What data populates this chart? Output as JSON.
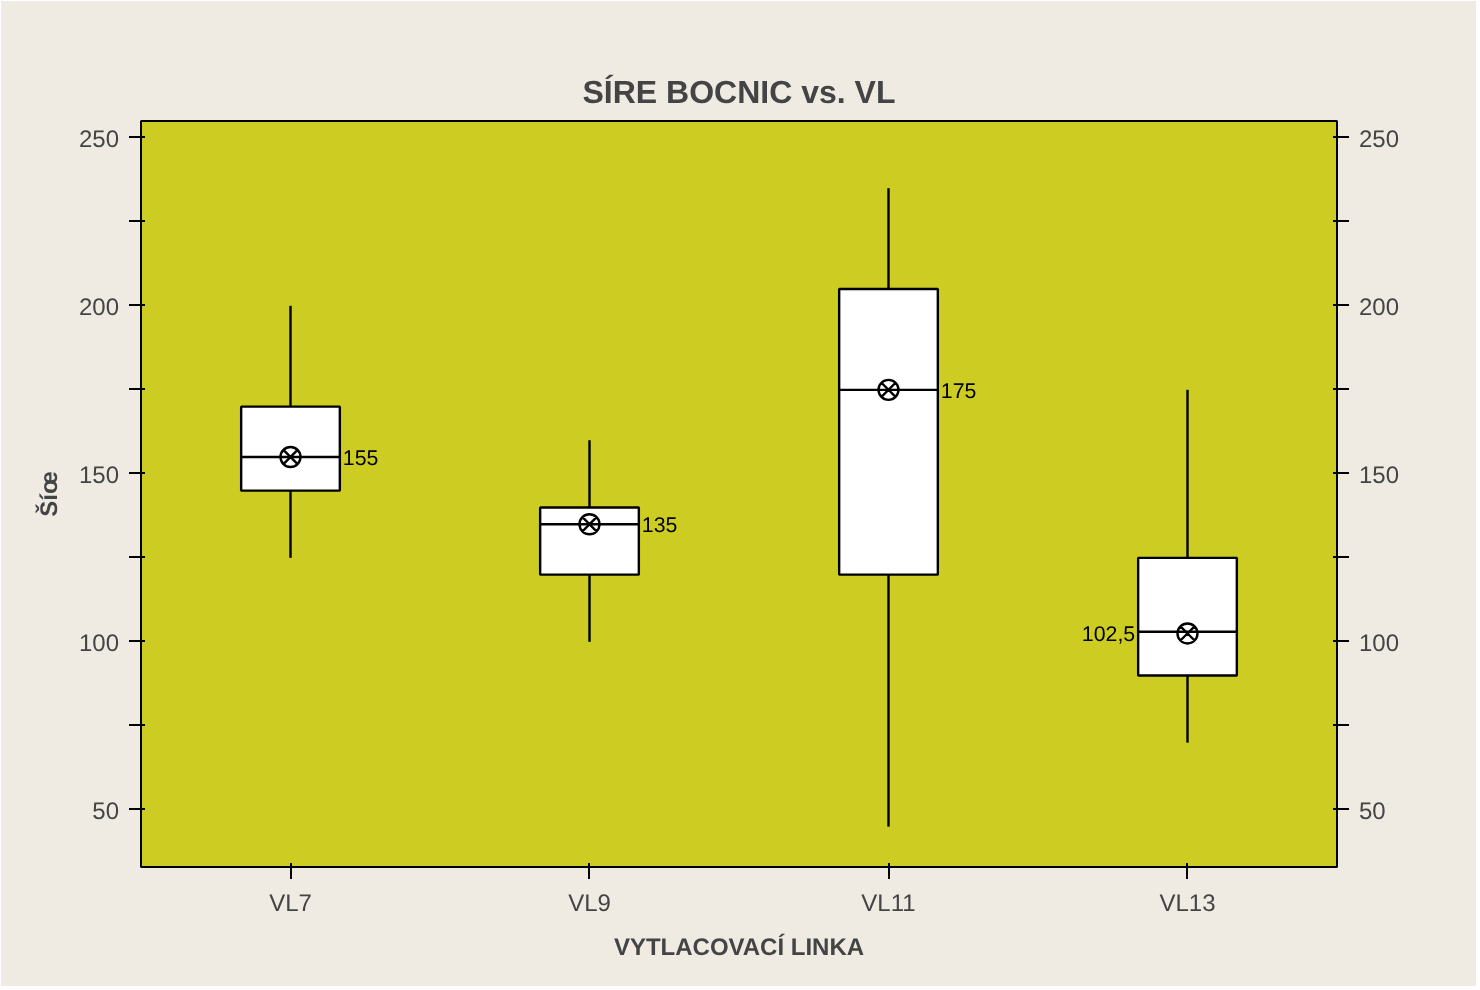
{
  "chart_data": {
    "type": "box",
    "title": "SÍRE BOCNIC vs. VL",
    "xlabel": "VYTLACOVACÍ LINKA",
    "ylabel": "Šíœ",
    "categories": [
      "VL7",
      "VL9",
      "VL11",
      "VL13"
    ],
    "boxes": [
      {
        "low": 125,
        "q1": 145,
        "median": 155,
        "q3": 170,
        "high": 200,
        "mean": 155
      },
      {
        "low": 100,
        "q1": 120,
        "median": 135,
        "q3": 140,
        "high": 160,
        "mean": 135
      },
      {
        "low": 45,
        "q1": 120,
        "median": 175,
        "q3": 205,
        "high": 235,
        "mean": 175
      },
      {
        "low": 70,
        "q1": 90,
        "median": 103,
        "q3": 125,
        "high": 175,
        "mean": 102.5
      }
    ],
    "annotations": [
      {
        "text": "155",
        "x": "VL7",
        "y": 155
      },
      {
        "text": "135",
        "x": "VL9",
        "y": 135
      },
      {
        "text": "175",
        "x": "VL11",
        "y": 175
      },
      {
        "text": "102,5",
        "x": "VL13",
        "y": 102.5
      }
    ],
    "ylim": [
      33,
      255
    ],
    "yticks": [
      50,
      {
        "value": 75,
        "label": null
      },
      100,
      {
        "value": 125,
        "label": null
      },
      150,
      {
        "value": 175,
        "label": null
      },
      200,
      {
        "value": 225,
        "label": null
      },
      250
    ],
    "y2lim": [
      33,
      255
    ],
    "y2ticks": [
      50,
      {
        "value": 75,
        "label": null
      },
      100,
      {
        "value": 125,
        "label": null
      },
      150,
      {
        "value": 175,
        "label": null
      },
      200,
      {
        "value": 225,
        "label": null
      },
      250
    ],
    "grid": false
  }
}
